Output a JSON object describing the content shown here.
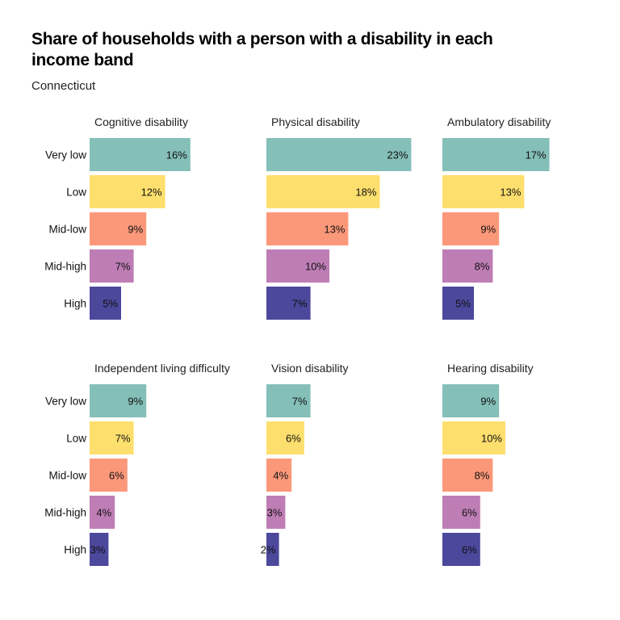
{
  "title": "Share of households with a person with a disability in each income band",
  "subtitle": "Connecticut",
  "colors": {
    "Very low": "#84bfb8",
    "Low": "#fddf6d",
    "Mid-low": "#fc987a",
    "Mid-high": "#be7db5",
    "High": "#4c489c"
  },
  "chart_data": {
    "type": "bar",
    "orientation": "horizontal",
    "categories": [
      "Very low",
      "Low",
      "Mid-low",
      "Mid-high",
      "High"
    ],
    "facet_layout": "2 rows x 3 columns",
    "grid": false,
    "legend": "none",
    "value_format": "percent",
    "facets": [
      {
        "name": "Cognitive disability",
        "values": [
          16,
          12,
          9,
          7,
          5
        ],
        "labels": [
          "16%",
          "12%",
          "9%",
          "7%",
          "5%"
        ]
      },
      {
        "name": "Physical disability",
        "values": [
          23,
          18,
          13,
          10,
          7
        ],
        "labels": [
          "23%",
          "18%",
          "13%",
          "10%",
          "7%"
        ]
      },
      {
        "name": "Ambulatory disability",
        "values": [
          17,
          13,
          9,
          8,
          5
        ],
        "labels": [
          "17%",
          "13%",
          "9%",
          "8%",
          "5%"
        ]
      },
      {
        "name": "Independent living difficulty",
        "values": [
          9,
          7,
          6,
          4,
          3
        ],
        "labels": [
          "9%",
          "7%",
          "6%",
          "4%",
          "3%"
        ]
      },
      {
        "name": "Vision disability",
        "values": [
          7,
          6,
          4,
          3,
          2
        ],
        "labels": [
          "7%",
          "6%",
          "4%",
          "3%",
          "2%"
        ]
      },
      {
        "name": "Hearing disability",
        "values": [
          9,
          10,
          8,
          6,
          6
        ],
        "labels": [
          "9%",
          "10%",
          "8%",
          "6%",
          "6%"
        ]
      }
    ]
  }
}
